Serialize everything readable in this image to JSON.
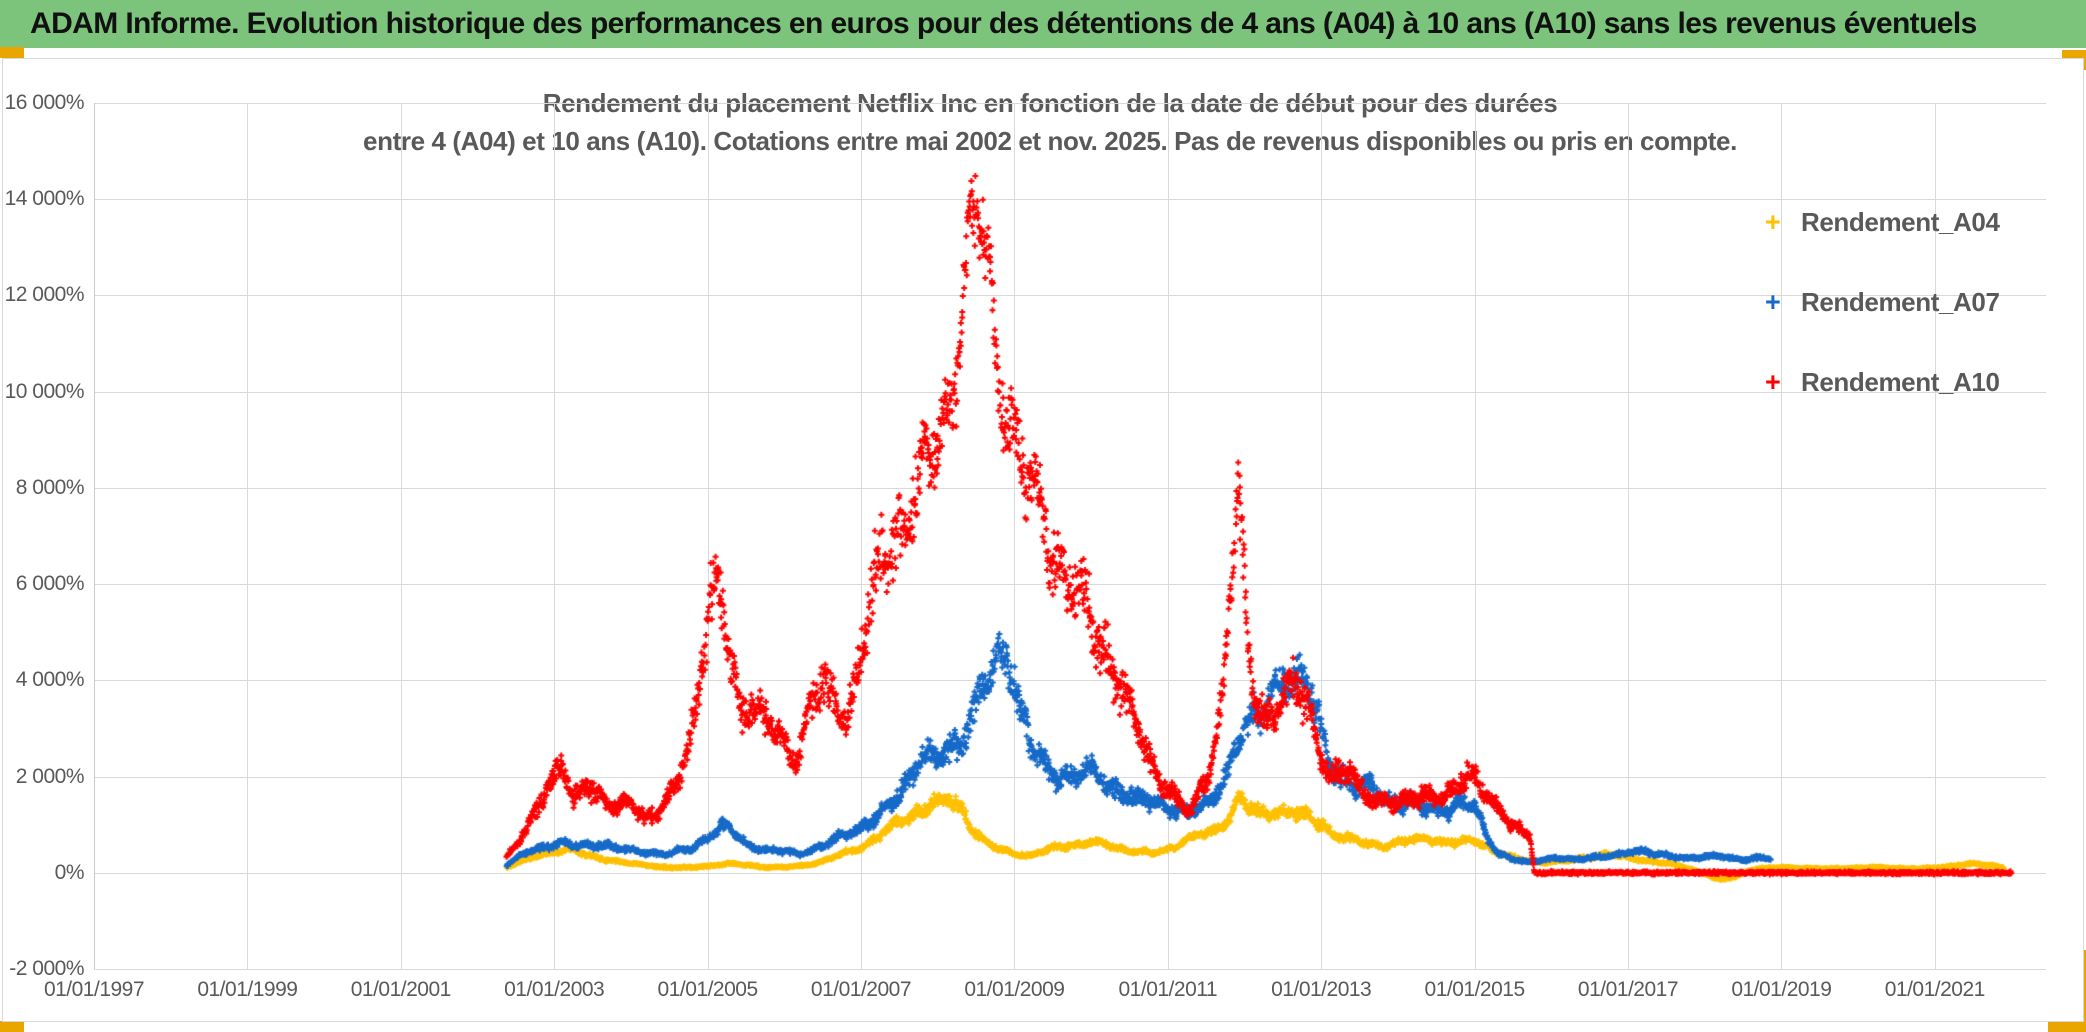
{
  "header": {
    "title": "ADAM Informe. Evolution historique des performances en euros pour des détentions de 4 ans (A04) à 10 ans (A10) sans les revenus éventuels",
    "background_color": "#7cc47c"
  },
  "accent_color": "#eaa600",
  "chart_data": {
    "type": "scatter",
    "marker": "plus",
    "title_line1": "Rendement du placement Netflix Inc en fonction de la date de début pour des durées",
    "title_line2": "entre 4 (A04) et 10 ans (A10). Cotations entre mai 2002 et nov. 2025. Pas de revenus disponibles ou pris en compte.",
    "grid": true,
    "x_axis": {
      "min_year": 1997,
      "max_year": 2022.45,
      "tick_years": [
        1997,
        1999,
        2001,
        2003,
        2005,
        2007,
        2009,
        2011,
        2013,
        2015,
        2017,
        2019,
        2021
      ],
      "tick_labels": [
        "01/01/1997",
        "01/01/1999",
        "01/01/2001",
        "01/01/2003",
        "01/01/2005",
        "01/01/2007",
        "01/01/2009",
        "01/01/2011",
        "01/01/2013",
        "01/01/2015",
        "01/01/2017",
        "01/01/2019",
        "01/01/2021"
      ]
    },
    "y_axis": {
      "min": -2000,
      "max": 16000,
      "tick_values": [
        16000,
        14000,
        12000,
        10000,
        8000,
        6000,
        4000,
        2000,
        0,
        -2000
      ],
      "tick_labels": [
        "16 000%",
        "14 000%",
        "12 000%",
        "10 000%",
        "8 000%",
        "6 000%",
        "4 000%",
        "2 000%",
        "0%",
        "-2 000%"
      ]
    },
    "legend_position": "right",
    "legend": [
      {
        "label": "Rendement_A04",
        "color": "#FFC000"
      },
      {
        "label": "Rendement_A07",
        "color": "#1569C8"
      },
      {
        "label": "Rendement_A10",
        "color": "#FE0000"
      }
    ],
    "series": [
      {
        "name": "Rendement_A04",
        "color": "#FFC000",
        "spread_pct": 0.14,
        "min_spread": 28,
        "max_spread": 400,
        "points": [
          [
            2002.38,
            120
          ],
          [
            2002.6,
            250
          ],
          [
            2002.85,
            380
          ],
          [
            2003.05,
            470
          ],
          [
            2003.2,
            500
          ],
          [
            2003.4,
            380
          ],
          [
            2003.6,
            300
          ],
          [
            2003.85,
            230
          ],
          [
            2004.1,
            170
          ],
          [
            2004.4,
            120
          ],
          [
            2004.7,
            100
          ],
          [
            2005.0,
            140
          ],
          [
            2005.25,
            190
          ],
          [
            2005.5,
            160
          ],
          [
            2005.75,
            120
          ],
          [
            2006.0,
            110
          ],
          [
            2006.25,
            150
          ],
          [
            2006.5,
            240
          ],
          [
            2006.75,
            380
          ],
          [
            2007.0,
            520
          ],
          [
            2007.25,
            800
          ],
          [
            2007.5,
            1050
          ],
          [
            2007.75,
            1300
          ],
          [
            2007.95,
            1450
          ],
          [
            2008.15,
            1500
          ],
          [
            2008.3,
            1350
          ],
          [
            2008.45,
            950
          ],
          [
            2008.6,
            650
          ],
          [
            2008.8,
            480
          ],
          [
            2009.0,
            400
          ],
          [
            2009.2,
            360
          ],
          [
            2009.4,
            450
          ],
          [
            2009.6,
            540
          ],
          [
            2009.8,
            590
          ],
          [
            2010.0,
            640
          ],
          [
            2010.2,
            580
          ],
          [
            2010.4,
            500
          ],
          [
            2010.6,
            440
          ],
          [
            2010.8,
            400
          ],
          [
            2011.0,
            480
          ],
          [
            2011.2,
            650
          ],
          [
            2011.4,
            780
          ],
          [
            2011.6,
            850
          ],
          [
            2011.8,
            1150
          ],
          [
            2011.92,
            1600
          ],
          [
            2012.05,
            1350
          ],
          [
            2012.2,
            1200
          ],
          [
            2012.4,
            1250
          ],
          [
            2012.6,
            1300
          ],
          [
            2012.8,
            1150
          ],
          [
            2013.0,
            1000
          ],
          [
            2013.2,
            800
          ],
          [
            2013.4,
            700
          ],
          [
            2013.6,
            600
          ],
          [
            2013.8,
            560
          ],
          [
            2014.0,
            620
          ],
          [
            2014.2,
            680
          ],
          [
            2014.4,
            720
          ],
          [
            2014.6,
            640
          ],
          [
            2014.8,
            620
          ],
          [
            2015.0,
            680
          ],
          [
            2015.15,
            560
          ],
          [
            2015.3,
            420
          ],
          [
            2015.5,
            310
          ],
          [
            2015.7,
            250
          ],
          [
            2015.9,
            220
          ],
          [
            2016.1,
            240
          ],
          [
            2016.3,
            270
          ],
          [
            2016.5,
            330
          ],
          [
            2016.7,
            390
          ],
          [
            2016.9,
            340
          ],
          [
            2017.1,
            290
          ],
          [
            2017.3,
            240
          ],
          [
            2017.5,
            190
          ],
          [
            2017.7,
            130
          ],
          [
            2017.9,
            30
          ],
          [
            2018.1,
            -90
          ],
          [
            2018.25,
            -130
          ],
          [
            2018.4,
            -80
          ],
          [
            2018.55,
            30
          ],
          [
            2018.75,
            90
          ],
          [
            2019.0,
            110
          ],
          [
            2019.3,
            95
          ],
          [
            2019.6,
            80
          ],
          [
            2019.9,
            95
          ],
          [
            2020.2,
            110
          ],
          [
            2020.5,
            95
          ],
          [
            2020.8,
            85
          ],
          [
            2021.1,
            110
          ],
          [
            2021.3,
            160
          ],
          [
            2021.5,
            190
          ],
          [
            2021.7,
            150
          ],
          [
            2021.9,
            110
          ]
        ]
      },
      {
        "name": "Rendement_A07",
        "color": "#1569C8",
        "spread_pct": 0.15,
        "min_spread": 35,
        "max_spread": 500,
        "points": [
          [
            2002.38,
            160
          ],
          [
            2002.6,
            380
          ],
          [
            2002.9,
            570
          ],
          [
            2003.1,
            620
          ],
          [
            2003.3,
            540
          ],
          [
            2003.6,
            600
          ],
          [
            2003.9,
            480
          ],
          [
            2004.2,
            430
          ],
          [
            2004.5,
            390
          ],
          [
            2004.8,
            520
          ],
          [
            2005.05,
            800
          ],
          [
            2005.2,
            950
          ],
          [
            2005.35,
            820
          ],
          [
            2005.5,
            600
          ],
          [
            2005.75,
            480
          ],
          [
            2006.0,
            430
          ],
          [
            2006.2,
            400
          ],
          [
            2006.5,
            560
          ],
          [
            2006.8,
            800
          ],
          [
            2007.0,
            950
          ],
          [
            2007.2,
            1150
          ],
          [
            2007.4,
            1400
          ],
          [
            2007.6,
            1900
          ],
          [
            2007.8,
            2500
          ],
          [
            2007.95,
            2300
          ],
          [
            2008.1,
            2450
          ],
          [
            2008.25,
            2700
          ],
          [
            2008.4,
            3200
          ],
          [
            2008.6,
            3800
          ],
          [
            2008.8,
            4400
          ],
          [
            2008.9,
            4600
          ],
          [
            2009.0,
            4100
          ],
          [
            2009.1,
            3300
          ],
          [
            2009.25,
            2500
          ],
          [
            2009.4,
            2150
          ],
          [
            2009.6,
            2000
          ],
          [
            2009.8,
            2050
          ],
          [
            2010.0,
            2100
          ],
          [
            2010.2,
            1850
          ],
          [
            2010.4,
            1700
          ],
          [
            2010.6,
            1500
          ],
          [
            2010.8,
            1450
          ],
          [
            2011.0,
            1400
          ],
          [
            2011.2,
            1250
          ],
          [
            2011.4,
            1300
          ],
          [
            2011.6,
            1600
          ],
          [
            2011.8,
            2200
          ],
          [
            2011.95,
            2900
          ],
          [
            2012.1,
            3100
          ],
          [
            2012.3,
            3600
          ],
          [
            2012.5,
            4100
          ],
          [
            2012.65,
            3800
          ],
          [
            2012.8,
            3950
          ],
          [
            2012.95,
            3400
          ],
          [
            2013.1,
            2400
          ],
          [
            2013.25,
            1900
          ],
          [
            2013.45,
            1700
          ],
          [
            2013.65,
            1900
          ],
          [
            2013.85,
            1500
          ],
          [
            2014.05,
            1350
          ],
          [
            2014.25,
            1500
          ],
          [
            2014.45,
            1350
          ],
          [
            2014.65,
            1250
          ],
          [
            2014.85,
            1450
          ],
          [
            2015.0,
            1500
          ],
          [
            2015.15,
            800
          ],
          [
            2015.3,
            400
          ],
          [
            2015.5,
            270
          ],
          [
            2015.7,
            230
          ],
          [
            2015.9,
            270
          ],
          [
            2016.1,
            300
          ],
          [
            2016.3,
            280
          ],
          [
            2016.5,
            330
          ],
          [
            2016.7,
            330
          ],
          [
            2016.9,
            380
          ],
          [
            2017.05,
            480
          ],
          [
            2017.2,
            450
          ],
          [
            2017.4,
            370
          ],
          [
            2017.6,
            330
          ],
          [
            2017.8,
            310
          ],
          [
            2018.0,
            330
          ],
          [
            2018.2,
            340
          ],
          [
            2018.4,
            300
          ],
          [
            2018.6,
            290
          ],
          [
            2018.75,
            310
          ],
          [
            2018.87,
            290
          ]
        ]
      },
      {
        "name": "Rendement_A10",
        "color": "#FE0000",
        "spread_pct": 0.16,
        "min_spread": 40,
        "max_spread": 1000,
        "points": [
          [
            2002.38,
            300
          ],
          [
            2002.55,
            650
          ],
          [
            2002.75,
            1300
          ],
          [
            2002.95,
            1900
          ],
          [
            2003.1,
            2200
          ],
          [
            2003.25,
            1500
          ],
          [
            2003.45,
            1900
          ],
          [
            2003.6,
            1600
          ],
          [
            2003.8,
            1300
          ],
          [
            2004.0,
            1500
          ],
          [
            2004.2,
            1150
          ],
          [
            2004.4,
            1300
          ],
          [
            2004.6,
            1800
          ],
          [
            2004.75,
            2700
          ],
          [
            2004.9,
            4200
          ],
          [
            2005.05,
            5700
          ],
          [
            2005.15,
            5600
          ],
          [
            2005.3,
            4500
          ],
          [
            2005.45,
            3300
          ],
          [
            2005.6,
            3600
          ],
          [
            2005.8,
            3000
          ],
          [
            2006.0,
            2650
          ],
          [
            2006.15,
            2450
          ],
          [
            2006.35,
            3500
          ],
          [
            2006.5,
            3900
          ],
          [
            2006.65,
            3500
          ],
          [
            2006.8,
            3200
          ],
          [
            2007.0,
            4600
          ],
          [
            2007.2,
            6000
          ],
          [
            2007.4,
            7000
          ],
          [
            2007.6,
            7600
          ],
          [
            2007.8,
            8200
          ],
          [
            2008.0,
            8700
          ],
          [
            2008.15,
            9800
          ],
          [
            2008.3,
            11800
          ],
          [
            2008.45,
            13300
          ],
          [
            2008.55,
            13500
          ],
          [
            2008.65,
            12400
          ],
          [
            2008.8,
            10600
          ],
          [
            2008.95,
            9500
          ],
          [
            2009.1,
            8400
          ],
          [
            2009.3,
            7600
          ],
          [
            2009.5,
            6700
          ],
          [
            2009.7,
            6100
          ],
          [
            2009.9,
            5600
          ],
          [
            2010.1,
            4900
          ],
          [
            2010.3,
            4300
          ],
          [
            2010.5,
            3400
          ],
          [
            2010.7,
            2600
          ],
          [
            2010.9,
            2000
          ],
          [
            2011.1,
            1550
          ],
          [
            2011.3,
            1250
          ],
          [
            2011.5,
            1900
          ],
          [
            2011.7,
            3500
          ],
          [
            2011.85,
            6500
          ],
          [
            2011.92,
            7800
          ],
          [
            2012.0,
            5500
          ],
          [
            2012.1,
            3900
          ],
          [
            2012.3,
            3200
          ],
          [
            2012.5,
            3600
          ],
          [
            2012.7,
            3800
          ],
          [
            2012.85,
            3400
          ],
          [
            2013.0,
            2500
          ],
          [
            2013.15,
            1900
          ],
          [
            2013.35,
            2100
          ],
          [
            2013.55,
            1700
          ],
          [
            2013.75,
            1500
          ],
          [
            2013.95,
            1400
          ],
          [
            2014.15,
            1550
          ],
          [
            2014.35,
            1700
          ],
          [
            2014.55,
            1500
          ],
          [
            2014.75,
            1700
          ],
          [
            2014.9,
            2200
          ],
          [
            2015.0,
            2000
          ],
          [
            2015.15,
            1650
          ],
          [
            2015.3,
            1300
          ],
          [
            2015.45,
            1050
          ],
          [
            2015.6,
            900
          ],
          [
            2015.72,
            800
          ],
          [
            2015.78,
            0
          ],
          [
            2022.0,
            0
          ]
        ]
      }
    ]
  }
}
